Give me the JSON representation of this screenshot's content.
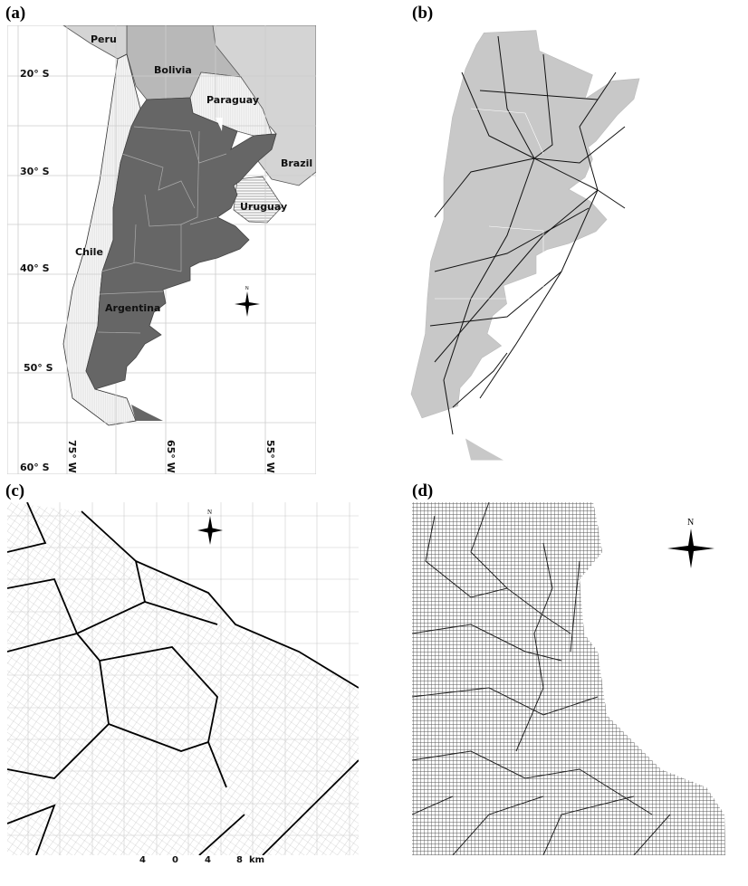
{
  "panels": {
    "a": {
      "label": "(a)"
    },
    "b": {
      "label": "(b)"
    },
    "c": {
      "label": "(c)"
    },
    "d": {
      "label": "(d)"
    }
  },
  "countries": {
    "peru": "Peru",
    "bolivia": "Bolivia",
    "paraguay": "Paraguay",
    "brazil": "Brazil",
    "uruguay": "Uruguay",
    "chile": "Chile",
    "argentina": "Argentina"
  },
  "latitudes": [
    "20° S",
    "30° S",
    "40° S",
    "50° S",
    "60° S"
  ],
  "longitudes": [
    "75° W",
    "65° W",
    "55° W"
  ],
  "north_label": "N",
  "scale_bar": {
    "ticks": [
      "4",
      "0",
      "4",
      "8"
    ],
    "unit": "km"
  },
  "colors": {
    "argentina": "#666666",
    "neighbors": "#c8c8c8",
    "roads_base": "#cccccc",
    "lines": "#000000"
  }
}
